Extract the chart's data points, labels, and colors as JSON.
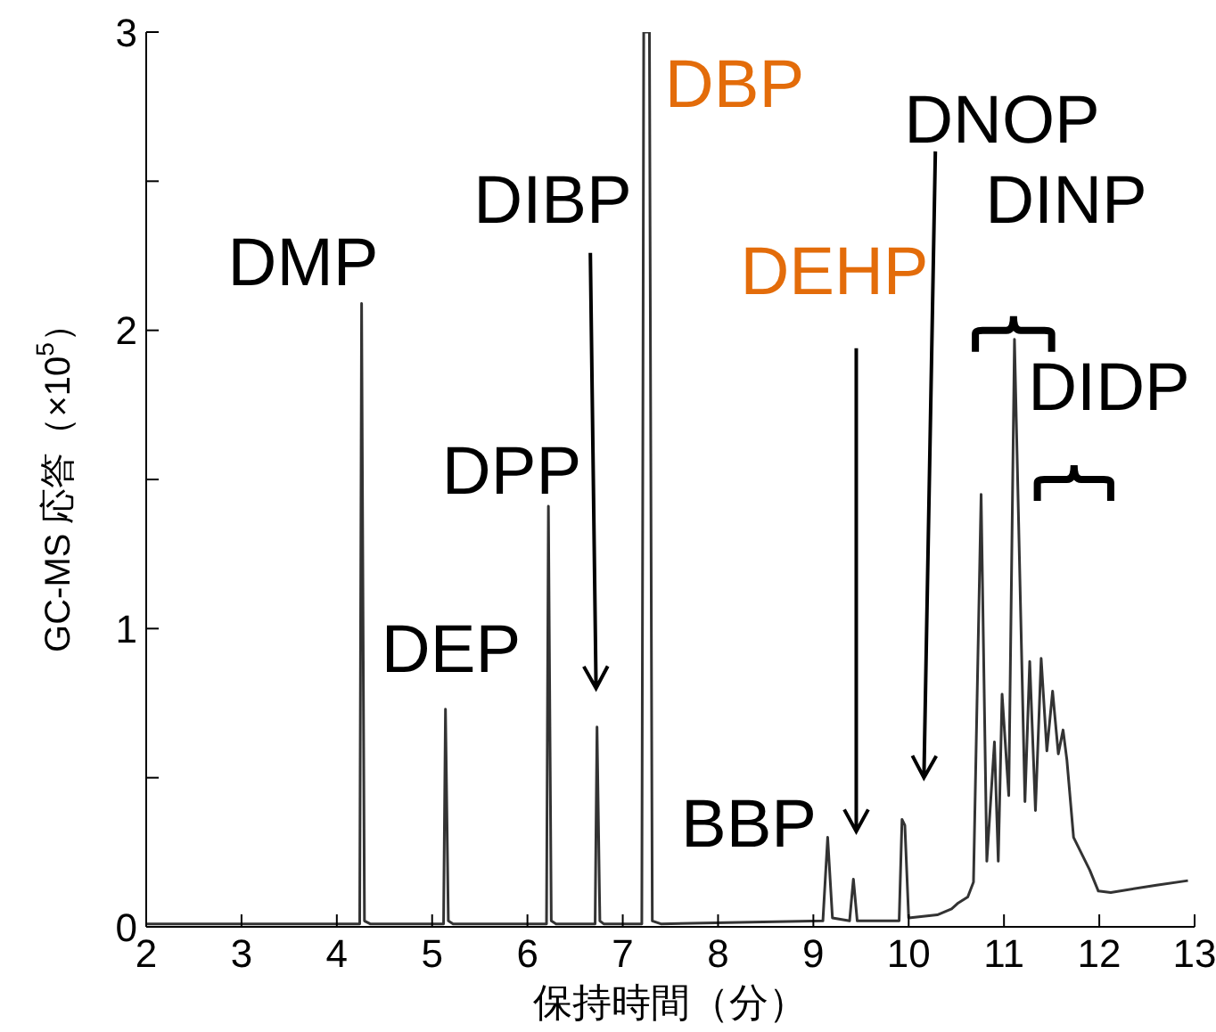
{
  "chart_data": {
    "type": "line",
    "xlabel": "保持時間（分）",
    "ylabel": "GC-MS 応答（×10$^{5}$）",
    "xlim": [
      2,
      13
    ],
    "xticks": [
      2,
      3,
      4,
      5,
      6,
      7,
      8,
      9,
      10,
      11,
      12,
      13
    ],
    "ylim": [
      0,
      3
    ],
    "yticks": [
      0,
      {
        "value": 0.5,
        "label": null
      },
      1,
      {
        "value": 1.5,
        "label": null
      },
      2,
      {
        "value": 2.5,
        "label": null
      },
      3
    ],
    "marker": "none",
    "line_style": "solid",
    "series": [
      {
        "color": "#333333",
        "x": [
          2,
          4.2,
          4.24,
          4.26,
          4.29,
          4.35,
          5.1,
          5.12,
          5.14,
          5.17,
          5.22,
          6.18,
          6.2,
          6.22,
          6.25,
          6.3,
          6.7,
          6.71,
          6.73,
          6.76,
          6.8,
          7.2,
          7.22,
          7.28,
          7.31,
          7.4,
          9.1,
          9.15,
          9.2,
          9.38,
          9.42,
          9.46,
          9.9,
          9.93,
          9.96,
          10.0,
          10.3,
          10.45,
          10.52,
          10.62,
          10.68,
          10.76,
          10.82,
          10.9,
          10.94,
          10.98,
          11.05,
          11.11,
          11.22,
          11.27,
          11.33,
          11.39,
          11.45,
          11.51,
          11.57,
          11.62,
          11.66,
          11.73,
          11.9,
          11.99,
          12.12,
          12.6,
          12.93
        ],
        "values": [
          0.01,
          0.01,
          0.01,
          2.09,
          0.02,
          0.01,
          0.01,
          0.01,
          0.73,
          0.02,
          0.01,
          0.01,
          0.01,
          1.41,
          0.02,
          0.01,
          0.01,
          0.01,
          0.67,
          0.02,
          0.01,
          0.01,
          3,
          3,
          0.02,
          0.01,
          0.02,
          0.3,
          0.03,
          0.02,
          0.16,
          0.02,
          0.02,
          0.36,
          0.34,
          0.03,
          0.04,
          0.06,
          0.08,
          0.1,
          0.15,
          1.45,
          0.22,
          0.62,
          0.22,
          0.78,
          0.44,
          1.97,
          0.42,
          0.89,
          0.39,
          0.9,
          0.59,
          0.79,
          0.58,
          0.66,
          0.56,
          0.3,
          0.19,
          0.12,
          0.115,
          0.14,
          0.155
        ]
      }
    ],
    "annotations": [
      "DMP",
      "DEP",
      "DPP",
      "DIBP",
      "DBP",
      "DEHP",
      "BBP",
      "DNOP",
      "DINP",
      "DIDP"
    ]
  }
}
